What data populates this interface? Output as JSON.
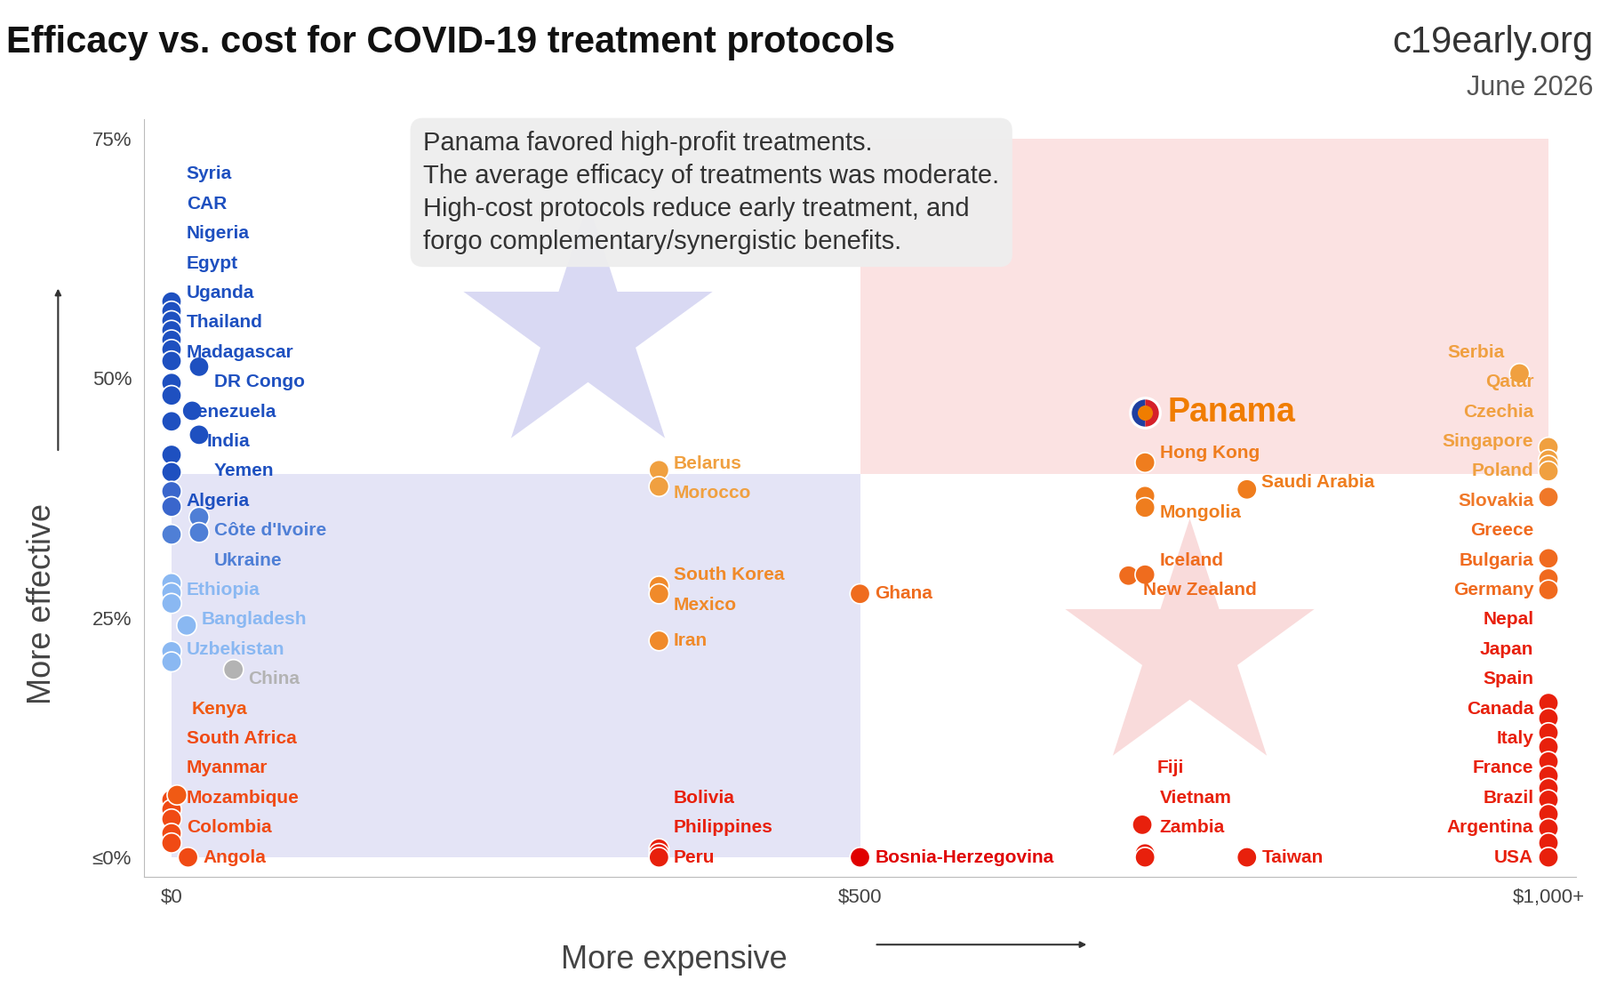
{
  "chart_data": {
    "type": "scatter",
    "title": "Efficacy vs. cost for COVID-19 treatment protocols",
    "brand": "c19early.org",
    "date": "June 2026",
    "annotation": [
      "Panama favored high-profit treatments.",
      "The average efficacy of treatments was moderate.",
      "High-cost protocols reduce early treatment, and",
      "forgo complementary/synergistic benefits."
    ],
    "x_label": "More expensive",
    "y_label": "More effective",
    "xlim": [
      -20,
      1020
    ],
    "ylim": [
      -2,
      77
    ],
    "xticks": [
      {
        "value": 0,
        "label": "$0"
      },
      {
        "value": 500,
        "label": "$500"
      },
      {
        "value": 1000,
        "label": "$1,000+"
      }
    ],
    "yticks": [
      {
        "value": 0,
        "label": "≤0%"
      },
      {
        "value": 25,
        "label": "25%"
      },
      {
        "value": 50,
        "label": "50%"
      },
      {
        "value": 75,
        "label": "75%"
      }
    ],
    "grid": false,
    "regions": [
      {
        "x": [
          0,
          500
        ],
        "y": [
          0,
          40
        ],
        "color": "#e4e4f6"
      },
      {
        "x": [
          500,
          1000
        ],
        "y": [
          40,
          75
        ],
        "color": "#fbe2e2"
      }
    ],
    "highlight": {
      "label": "Panama",
      "x": 707,
      "y": 46.4,
      "color": "#f07d00"
    },
    "labels": [
      "Syria",
      "CAR",
      "Nigeria",
      "Egypt",
      "Uganda",
      "Thailand",
      "Madagascar",
      "DR Congo",
      "Venezuela",
      null,
      "India",
      null,
      "Yemen",
      "Algeria",
      null,
      null,
      null,
      "Côte d'Ivoire",
      "Ukraine",
      null,
      "Ethiopia",
      null,
      null,
      "Bangladesh",
      "Uzbekistan",
      null,
      "China",
      "South Africa",
      "Myanmar",
      "Mozambique",
      "Kenya",
      "Colombia",
      null,
      "Angola",
      "Belarus",
      "Morocco",
      "South Korea",
      "Mexico",
      "Iran",
      "Ghana",
      "Bolivia",
      "Philippines",
      "Peru",
      "Bosnia-Herzegovina",
      "Hong Kong",
      "Mongolia",
      null,
      "Saudi Arabia",
      "New Zealand",
      "Iceland",
      "Fiji",
      "Vietnam",
      "Zambia",
      "Taiwan",
      "Serbia",
      "Qatar",
      "Czechia",
      "Singapore",
      "Poland",
      "Slovakia",
      "Greece",
      "Bulgaria",
      "Germany",
      "Nepal",
      "Japan",
      "Spain",
      "Canada",
      "Italy",
      "France",
      null,
      "Brazil",
      null,
      "Argentina",
      null,
      "USA"
    ],
    "x": [
      0,
      0,
      0,
      0,
      0,
      0,
      0,
      20,
      0,
      0,
      15,
      0,
      20,
      0,
      0,
      0,
      0,
      20,
      20,
      0,
      0,
      0,
      0,
      11,
      0,
      0,
      45,
      0,
      0,
      0,
      4,
      0,
      0,
      12,
      354,
      354,
      354,
      354,
      354,
      500,
      354,
      354,
      354,
      500,
      707,
      707,
      707,
      781,
      695,
      707,
      705,
      707,
      707,
      781,
      979,
      1000,
      1000,
      1000,
      1000,
      1000,
      1000,
      1000,
      1000,
      1000,
      1000,
      1000,
      1000,
      1000,
      1000,
      1000,
      1000,
      1000,
      1000,
      1000,
      1000
    ],
    "values": [
      58.0,
      57.0,
      56.0,
      55.0,
      54.0,
      53.0,
      51.8,
      51.2,
      49.5,
      48.2,
      46.6,
      45.5,
      44.1,
      42.0,
      40.2,
      38.2,
      36.6,
      35.5,
      33.9,
      33.7,
      28.6,
      27.6,
      26.5,
      24.2,
      21.5,
      20.4,
      19.6,
      6.0,
      5.0,
      4.0,
      6.5,
      2.5,
      1.5,
      0,
      40.4,
      38.7,
      28.3,
      27.5,
      22.6,
      27.5,
      0.9,
      0.4,
      0,
      0,
      41.2,
      37.7,
      36.5,
      38.4,
      29.4,
      29.5,
      3.4,
      0.4,
      0,
      0,
      50.5,
      42.8,
      41.5,
      40.9,
      40.3,
      37.6,
      31.2,
      29.1,
      27.9,
      16.1,
      14.5,
      13.0,
      11.5,
      10.0,
      8.5,
      7.2,
      6.0,
      4.5,
      3.0,
      1.5,
      0
    ],
    "colors": [
      "#1e50c0",
      "#1e50c0",
      "#1e50c0",
      "#1e50c0",
      "#1e50c0",
      "#1e50c0",
      "#1e50c0",
      "#1e50c0",
      "#1e50c0",
      "#1e50c0",
      "#1e50c0",
      "#1e50c0",
      "#1e50c0",
      "#1e50c0",
      "#1e50c0",
      "#3a66cc",
      "#3a66cc",
      "#4f7fd6",
      "#4f7fd6",
      "#4f7fd6",
      "#8ab8f2",
      "#8ab8f2",
      "#8ab8f2",
      "#8ab8f2",
      "#8ab8f2",
      "#8ab8f2",
      "#b3b3b3",
      "#f04a14",
      "#f04a14",
      "#f04a14",
      "#f05a14",
      "#f04a14",
      "#f04a14",
      "#f04a14",
      "#f0a040",
      "#f0a040",
      "#f08a2a",
      "#f08a2a",
      "#f08a2a",
      "#ef6c1e",
      "#e8200c",
      "#e8200c",
      "#e8200c",
      "#e00000",
      "#ef7d1e",
      "#ef7d1e",
      "#ef7d1e",
      "#ef7d1e",
      "#ef6c1e",
      "#ef6c1e",
      "#e8200c",
      "#e8200c",
      "#e8200c",
      "#e8200c",
      "#f0a040",
      "#f0a040",
      "#f0a040",
      "#f0a040",
      "#f0a040",
      "#f07828",
      "#f06a1e",
      "#f06a1e",
      "#f06a1e",
      "#e8200c",
      "#e8200c",
      "#e8200c",
      "#e8200c",
      "#e8200c",
      "#e8200c",
      "#e8200c",
      "#e8200c",
      "#e8200c",
      "#e8200c",
      "#e8200c",
      "#e8200c"
    ]
  }
}
